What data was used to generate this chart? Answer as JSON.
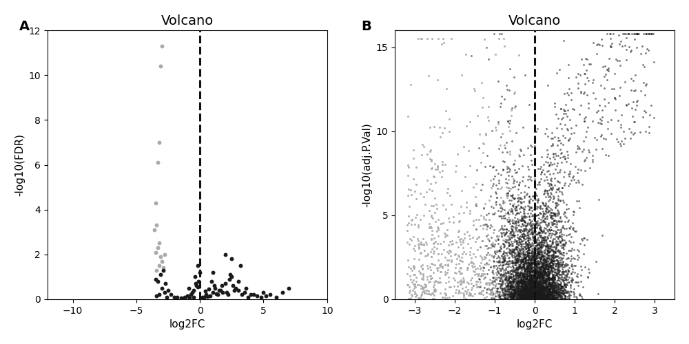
{
  "panel_A": {
    "title": "Volcano",
    "xlabel": "log2FC",
    "ylabel": "-log10(FDR)",
    "xlim": [
      -12,
      10
    ],
    "ylim": [
      0,
      12
    ],
    "xticks": [
      -10,
      -5,
      0,
      5,
      10
    ],
    "yticks": [
      0,
      2,
      4,
      6,
      8,
      10,
      12
    ],
    "dashed_x": 0,
    "gray_points": [
      [
        -3.0,
        11.3
      ],
      [
        -3.1,
        10.4
      ],
      [
        -3.2,
        7.0
      ],
      [
        -3.3,
        6.1
      ],
      [
        -3.5,
        4.3
      ],
      [
        -3.4,
        3.3
      ],
      [
        -3.6,
        3.1
      ],
      [
        -3.2,
        2.5
      ],
      [
        -3.3,
        2.3
      ],
      [
        -3.5,
        2.1
      ],
      [
        -3.1,
        1.9
      ],
      [
        -2.8,
        2.0
      ],
      [
        -3.0,
        1.7
      ],
      [
        -3.2,
        1.5
      ],
      [
        -2.9,
        1.4
      ],
      [
        -3.4,
        1.3
      ]
    ],
    "black_points": [
      [
        -3.5,
        0.9
      ],
      [
        -3.3,
        0.8
      ],
      [
        -3.1,
        1.1
      ],
      [
        -2.9,
        1.3
      ],
      [
        -2.7,
        0.7
      ],
      [
        -3.0,
        0.5
      ],
      [
        -2.8,
        0.3
      ],
      [
        -3.2,
        0.2
      ],
      [
        -3.4,
        0.15
      ],
      [
        -2.6,
        0.1
      ],
      [
        -2.5,
        0.4
      ],
      [
        -2.3,
        0.2
      ],
      [
        -2.0,
        0.1
      ],
      [
        -1.8,
        0.08
      ],
      [
        -1.5,
        0.05
      ],
      [
        -1.2,
        0.05
      ],
      [
        -0.8,
        0.05
      ],
      [
        -0.5,
        0.1
      ],
      [
        0.3,
        0.1
      ],
      [
        0.5,
        0.2
      ],
      [
        0.8,
        0.15
      ],
      [
        1.0,
        0.3
      ],
      [
        1.2,
        0.5
      ],
      [
        1.5,
        0.4
      ],
      [
        1.8,
        0.3
      ],
      [
        2.0,
        0.7
      ],
      [
        2.2,
        0.2
      ],
      [
        2.5,
        1.8
      ],
      [
        2.8,
        0.5
      ],
      [
        3.0,
        0.8
      ],
      [
        3.2,
        1.5
      ],
      [
        3.5,
        0.3
      ],
      [
        4.0,
        0.2
      ],
      [
        4.5,
        0.15
      ],
      [
        5.0,
        0.3
      ],
      [
        5.5,
        0.2
      ],
      [
        6.0,
        0.1
      ],
      [
        7.0,
        0.5
      ],
      [
        0.1,
        0.05
      ],
      [
        0.2,
        0.08
      ],
      [
        0.6,
        0.12
      ],
      [
        1.3,
        0.25
      ],
      [
        1.7,
        0.6
      ],
      [
        2.3,
        0.9
      ],
      [
        2.7,
        0.4
      ],
      [
        3.8,
        0.1
      ],
      [
        4.2,
        0.2
      ],
      [
        6.5,
        0.3
      ],
      [
        1.0,
        1.2
      ],
      [
        2.0,
        2.0
      ],
      [
        2.5,
        1.0
      ],
      [
        3.0,
        0.4
      ],
      [
        -0.5,
        0.4
      ],
      [
        -0.3,
        0.6
      ],
      [
        -0.1,
        0.8
      ],
      [
        0.0,
        1.2
      ],
      [
        -0.2,
        1.5
      ],
      [
        -0.4,
        1.0
      ],
      [
        -0.6,
        0.3
      ],
      [
        -0.7,
        0.2
      ],
      [
        -1.0,
        0.15
      ],
      [
        -1.2,
        0.1
      ],
      [
        -0.9,
        0.5
      ],
      [
        0.4,
        0.35
      ],
      [
        0.7,
        0.45
      ],
      [
        1.1,
        0.6
      ],
      [
        1.4,
        0.2
      ],
      [
        2.1,
        0.3
      ],
      [
        2.6,
        0.6
      ],
      [
        3.3,
        0.2
      ],
      [
        4.8,
        0.1
      ],
      [
        5.2,
        0.15
      ],
      [
        0.9,
        0.8
      ],
      [
        1.6,
        0.4
      ],
      [
        2.4,
        1.1
      ],
      [
        3.6,
        0.5
      ],
      [
        -0.15,
        0.55
      ],
      [
        -0.35,
        0.7
      ]
    ]
  },
  "panel_B": {
    "title": "Volcano",
    "xlabel": "log2FC",
    "ylabel": "-log10(adj.P.Val)",
    "xlim": [
      -3.5,
      3.5
    ],
    "ylim": [
      0,
      16
    ],
    "xticks": [
      -3,
      -2,
      -1,
      0,
      1,
      2,
      3
    ],
    "yticks": [
      0,
      5,
      10,
      15
    ],
    "dashed_x": 0,
    "n_black": 5000,
    "n_gray": 800,
    "seed_black": 7,
    "seed_gray": 13
  },
  "label_A": "A",
  "label_B": "B",
  "label_fontsize": 14,
  "title_fontsize": 14,
  "axis_label_fontsize": 11,
  "tick_fontsize": 10,
  "marker_size_A": 18,
  "marker_size_B": 4,
  "gray_color": "#aaaaaa",
  "black_color": "#1a1a1a",
  "dashed_color": "#111111",
  "background_color": "#ffffff"
}
